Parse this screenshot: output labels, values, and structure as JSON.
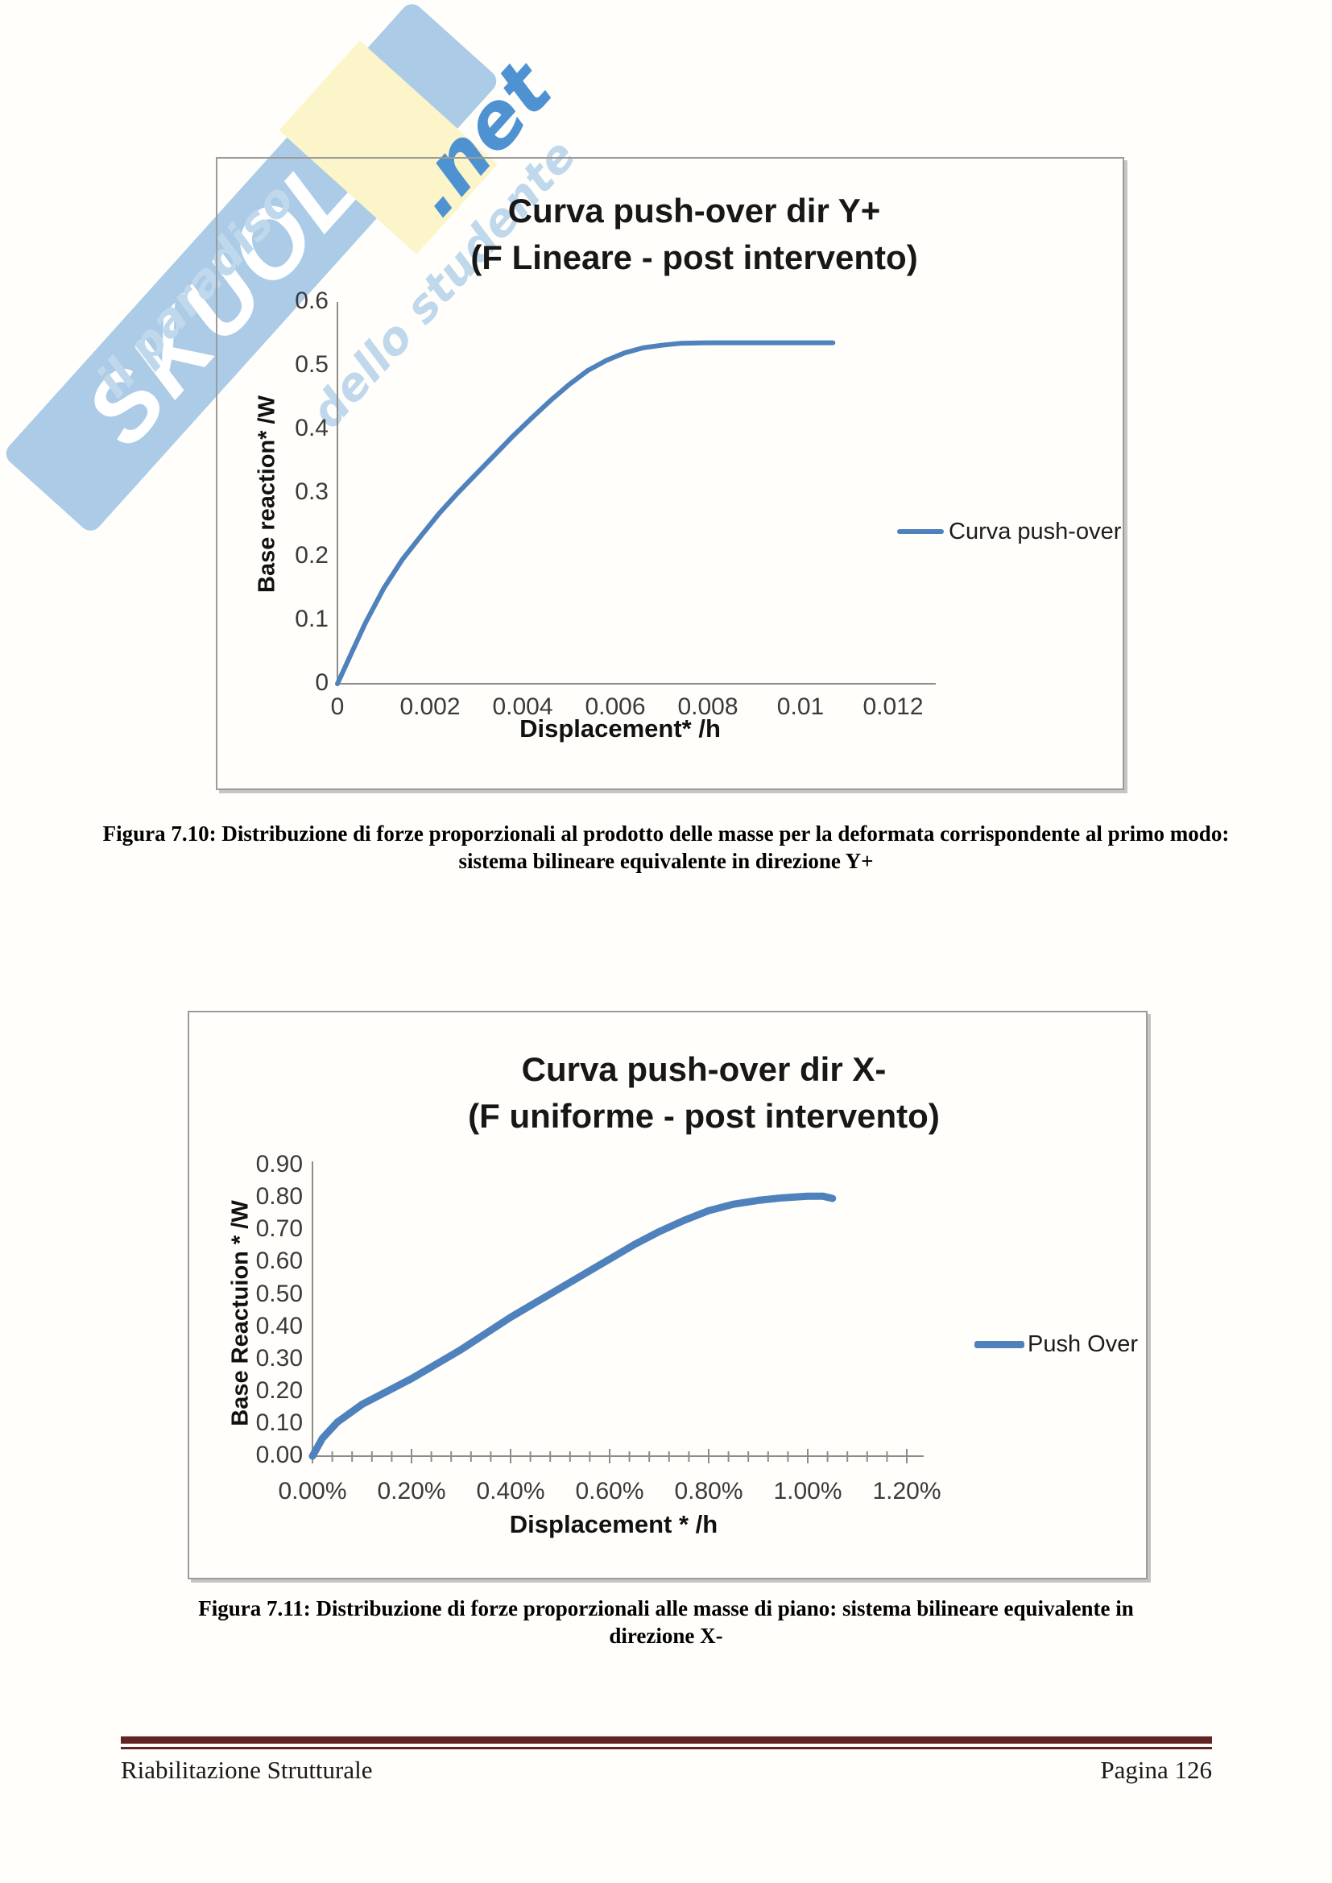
{
  "watermark": {
    "brand_main": "SKUOL",
    "brand_a": "a",
    "brand_net": ".net",
    "slogan_part1": "il paradiso",
    "slogan_part2": "dello studente",
    "band_color": "#a3c6e4",
    "net_color": "#4e92d2",
    "patch_color": "#fbf5c9"
  },
  "figure_7_10": {
    "chart": {
      "title_line1": "Curva push-over dir Y+",
      "title_line2": "(F Lineare - post intervento)",
      "y_axis_label": "Base reaction* /W",
      "x_axis_label": "Displacement* /h",
      "x_tick_labels": [
        "0",
        "0.002",
        "0.004",
        "0.006",
        "0.008",
        "0.01",
        "0.012"
      ],
      "y_tick_labels": [
        "0",
        "0.1",
        "0.2",
        "0.3",
        "0.4",
        "0.5",
        "0.6"
      ],
      "legend_label": "Curva push-over",
      "line_color": "#4f81bd",
      "axis_color": "#8c8c8c"
    },
    "caption_line1": "Figura 7.10: Distribuzione di forze proporzionali al prodotto delle masse per la deformata corrispondente al primo modo:",
    "caption_line2": "sistema bilineare equivalente in direzione Y+"
  },
  "figure_7_11": {
    "chart": {
      "title_line1": "Curva push-over dir X-",
      "title_line2": "(F uniforme - post intervento)",
      "y_axis_label": "Base Reactuion * /W",
      "x_axis_label": "Displacement * /h",
      "x_tick_labels": [
        "0.00%",
        "0.20%",
        "0.40%",
        "0.60%",
        "0.80%",
        "1.00%",
        "1.20%"
      ],
      "y_tick_labels": [
        "0.00",
        "0.10",
        "0.20",
        "0.30",
        "0.40",
        "0.50",
        "0.60",
        "0.70",
        "0.80",
        "0.90"
      ],
      "legend_label": "Push Over",
      "line_color": "#4f81bd",
      "axis_color": "#8c8c8c"
    },
    "caption_line1": "Figura 7.11: Distribuzione di forze proporzionali alle masse di piano: sistema bilineare equivalente in",
    "caption_line2": "direzione X-"
  },
  "footer": {
    "left_text": "Riabilitazione Strutturale",
    "right_text": "Pagina 126",
    "rule_color": "#622423"
  },
  "chart_data": [
    {
      "type": "line",
      "title": "Curva push-over dir Y+ (F Lineare - post intervento)",
      "xlabel": "Displacement* /h",
      "ylabel": "Base reaction* /W",
      "xlim": [
        0,
        0.012
      ],
      "ylim": [
        0,
        0.6
      ],
      "x_ticks": [
        0,
        0.002,
        0.004,
        0.006,
        0.008,
        0.01,
        0.012
      ],
      "y_ticks": [
        0,
        0.1,
        0.2,
        0.3,
        0.4,
        0.5,
        0.6
      ],
      "grid": false,
      "legend_position": "right",
      "series": [
        {
          "name": "Curva push-over",
          "x": [
            0,
            0.0003,
            0.0006,
            0.001,
            0.0014,
            0.0018,
            0.0022,
            0.0026,
            0.003,
            0.0034,
            0.0038,
            0.0042,
            0.0046,
            0.005,
            0.0054,
            0.0058,
            0.0062,
            0.0066,
            0.007,
            0.0074,
            0.008,
            0.009,
            0.01,
            0.0107
          ],
          "y": [
            0,
            0.048,
            0.095,
            0.15,
            0.195,
            0.232,
            0.268,
            0.3,
            0.33,
            0.36,
            0.39,
            0.418,
            0.445,
            0.47,
            0.492,
            0.508,
            0.52,
            0.528,
            0.532,
            0.535,
            0.536,
            0.536,
            0.536,
            0.536
          ]
        }
      ]
    },
    {
      "type": "line",
      "title": "Curva push-over dir X- (F uniforme - post intervento)",
      "xlabel": "Displacement * /h",
      "ylabel": "Base Reactuion * /W",
      "x_unit": "percent",
      "xlim": [
        0,
        1.2
      ],
      "ylim": [
        0,
        0.9
      ],
      "x_ticks": [
        0,
        0.2,
        0.4,
        0.6,
        0.8,
        1.0,
        1.2
      ],
      "x_minor_tick_step": 0.04,
      "y_ticks": [
        0,
        0.1,
        0.2,
        0.3,
        0.4,
        0.5,
        0.6,
        0.7,
        0.8,
        0.9
      ],
      "grid": false,
      "legend_position": "right",
      "series": [
        {
          "name": "Push Over",
          "x": [
            0,
            0.02,
            0.05,
            0.1,
            0.15,
            0.2,
            0.25,
            0.3,
            0.35,
            0.4,
            0.45,
            0.5,
            0.55,
            0.6,
            0.65,
            0.7,
            0.75,
            0.8,
            0.85,
            0.9,
            0.95,
            1.0,
            1.03,
            1.05
          ],
          "y": [
            0,
            0.055,
            0.105,
            0.16,
            0.2,
            0.24,
            0.285,
            0.33,
            0.38,
            0.43,
            0.475,
            0.52,
            0.565,
            0.61,
            0.655,
            0.695,
            0.73,
            0.76,
            0.78,
            0.792,
            0.8,
            0.805,
            0.805,
            0.798
          ]
        }
      ]
    }
  ]
}
